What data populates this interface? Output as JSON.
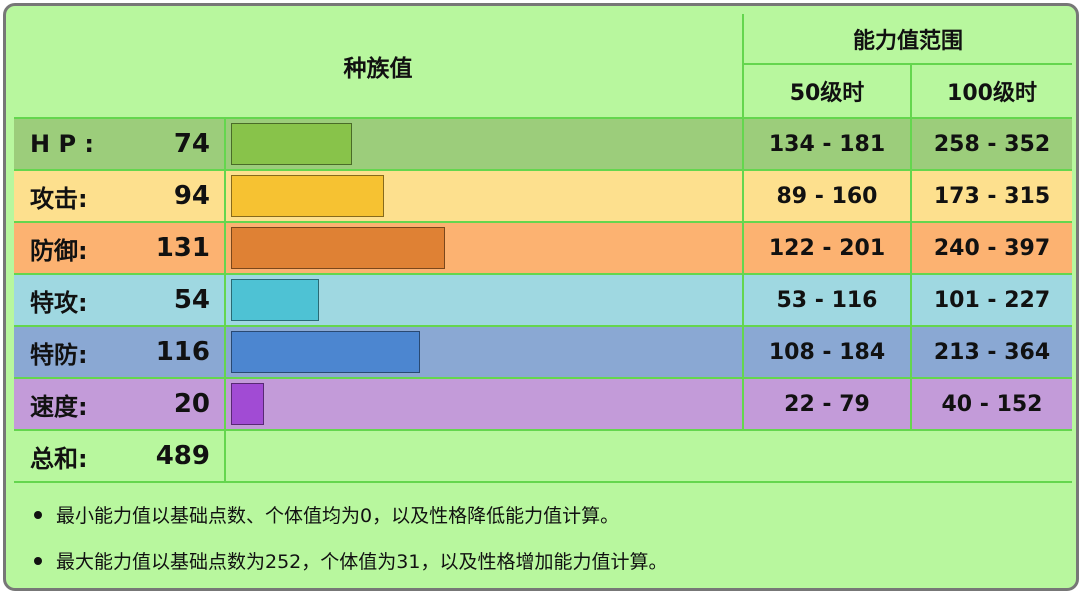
{
  "header": {
    "base_stats": "种族值",
    "stat_range": "能力值范围",
    "level50": "50级时",
    "level100": "100级时"
  },
  "stats": [
    {
      "label": "H P :",
      "value": "74",
      "base": 74,
      "lv50": "134 - 181",
      "lv100": "258 - 352",
      "row_color": "#9ccd7b",
      "bar_color": "#88c34a"
    },
    {
      "label": "攻击:",
      "value": "94",
      "base": 94,
      "lv50": "89 - 160",
      "lv100": "173 - 315",
      "row_color": "#fde08e",
      "bar_color": "#f6c232"
    },
    {
      "label": "防御:",
      "value": "131",
      "base": 131,
      "lv50": "122 - 201",
      "lv100": "240 - 397",
      "row_color": "#fcb271",
      "bar_color": "#df8134"
    },
    {
      "label": "特攻:",
      "value": "54",
      "base": 54,
      "lv50": "53 - 116",
      "lv100": "101 - 227",
      "row_color": "#9fd8e1",
      "bar_color": "#4ec2d4"
    },
    {
      "label": "特防:",
      "value": "116",
      "base": 116,
      "lv50": "108 - 184",
      "lv100": "213 - 364",
      "row_color": "#8aa8d3",
      "bar_color": "#4c86d0"
    },
    {
      "label": "速度:",
      "value": "20",
      "base": 20,
      "lv50": "22 - 79",
      "lv100": "40 - 152",
      "row_color": "#c39bd9",
      "bar_color": "#a14bd4"
    }
  ],
  "total": {
    "label": "总和:",
    "value": "489"
  },
  "notes": [
    "最小能力值以基础点数、个体值均为0，以及性格降低能力值计算。",
    "最大能力值以基础点数为252，个体值为31，以及性格增加能力值计算。"
  ]
}
